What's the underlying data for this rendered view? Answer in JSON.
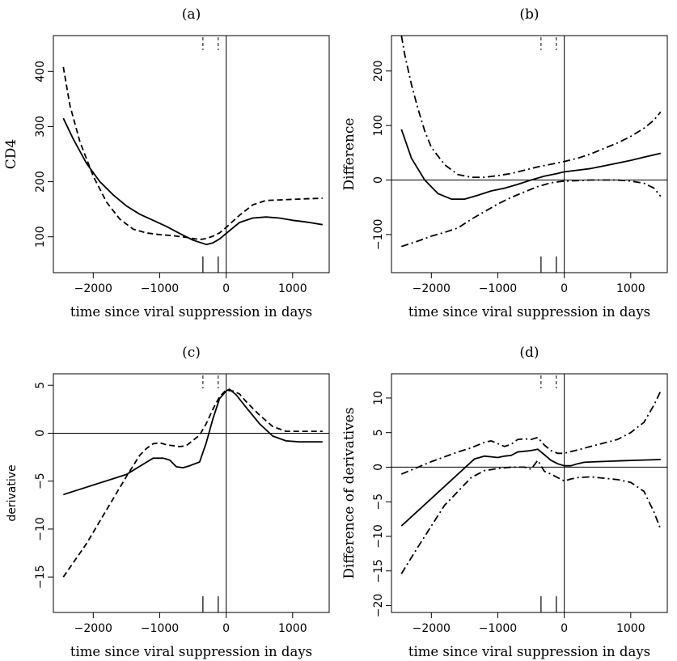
{
  "chart_data": [
    {
      "type": "line",
      "title": "(a)",
      "xlabel": "time since viral suppression in days",
      "ylabel": "CD4",
      "xlim": [
        -2600,
        1550
      ],
      "ylim": [
        35,
        465
      ],
      "xticks": [
        -2000,
        -1000,
        0,
        1000
      ],
      "yticks": [
        100,
        200,
        300,
        400
      ],
      "ytick_labels": [
        "100",
        "200",
        "300",
        "400"
      ],
      "hlines": [],
      "vlines": [
        0
      ],
      "top_rug": [
        -350,
        -120
      ],
      "bottom_rug": [
        -350,
        -120
      ],
      "series": [
        {
          "style": "solid",
          "x": [
            -2450,
            -2300,
            -2100,
            -1900,
            -1700,
            -1500,
            -1300,
            -1100,
            -900,
            -700,
            -500,
            -300,
            -200,
            -100,
            0,
            200,
            400,
            600,
            800,
            1000,
            1200,
            1450
          ],
          "y": [
            315,
            277,
            233,
            200,
            176,
            156,
            141,
            130,
            119,
            106,
            94,
            86,
            89,
            96,
            106,
            126,
            134,
            136,
            134,
            130,
            127,
            122
          ]
        },
        {
          "style": "dashed",
          "x": [
            -2450,
            -2350,
            -2200,
            -2000,
            -1800,
            -1600,
            -1400,
            -1200,
            -1000,
            -800,
            -600,
            -400,
            -300,
            -200,
            -100,
            0,
            200,
            400,
            600,
            800,
            1000,
            1200,
            1450
          ],
          "y": [
            408,
            338,
            272,
            210,
            163,
            132,
            114,
            107,
            104,
            102,
            99,
            95,
            97,
            101,
            107,
            117,
            139,
            158,
            166,
            167,
            168,
            169,
            170
          ]
        }
      ]
    },
    {
      "type": "line",
      "title": "(b)",
      "xlabel": "time since viral suppression in days",
      "ylabel": "Difference",
      "xlim": [
        -2600,
        1550
      ],
      "ylim": [
        -170,
        265
      ],
      "xticks": [
        -2000,
        -1000,
        0,
        1000
      ],
      "yticks": [
        -100,
        0,
        100,
        200
      ],
      "ytick_labels": [
        "−100",
        "0",
        "100",
        "200"
      ],
      "hlines": [
        0
      ],
      "vlines": [
        0
      ],
      "top_rug": [
        -350,
        -120
      ],
      "bottom_rug": [
        -350,
        -120
      ],
      "series": [
        {
          "style": "solid",
          "x": [
            -2450,
            -2300,
            -2100,
            -1900,
            -1700,
            -1500,
            -1300,
            -1100,
            -900,
            -700,
            -500,
            -300,
            -100,
            0,
            200,
            400,
            600,
            800,
            1000,
            1200,
            1450
          ],
          "y": [
            93,
            40,
            0,
            -25,
            -35,
            -35,
            -28,
            -20,
            -15,
            -8,
            0,
            7,
            12,
            15,
            18,
            21,
            26,
            31,
            36,
            42,
            49
          ]
        },
        {
          "style": "dashdot",
          "x": [
            -2450,
            -2400,
            -2300,
            -2200,
            -2100,
            -2000,
            -1800,
            -1600,
            -1400,
            -1200,
            -1000,
            -800,
            -600,
            -400,
            -200,
            0,
            200,
            400,
            600,
            800,
            1000,
            1200,
            1350,
            1450
          ],
          "y": [
            265,
            230,
            175,
            130,
            90,
            60,
            28,
            10,
            5,
            5,
            8,
            12,
            18,
            24,
            29,
            34,
            40,
            48,
            58,
            68,
            80,
            95,
            110,
            125
          ]
        },
        {
          "style": "dashdot",
          "x": [
            -2450,
            -2200,
            -2000,
            -1800,
            -1600,
            -1400,
            -1200,
            -1000,
            -800,
            -600,
            -400,
            -200,
            0,
            200,
            400,
            600,
            800,
            1000,
            1200,
            1350,
            1450
          ],
          "y": [
            -122,
            -112,
            -103,
            -96,
            -88,
            -72,
            -58,
            -44,
            -32,
            -22,
            -12,
            -5,
            -2,
            -1,
            0,
            0,
            0,
            -2,
            -6,
            -15,
            -30
          ]
        }
      ]
    },
    {
      "type": "line",
      "title": "(c)",
      "xlabel": "time since viral suppression in days",
      "ylabel": "derivative",
      "xlim": [
        -2600,
        1550
      ],
      "ylim": [
        -18.7,
        6.2
      ],
      "xticks": [
        -2000,
        -1000,
        0,
        1000
      ],
      "yticks": [
        -15,
        -10,
        -5,
        0,
        5
      ],
      "ytick_labels": [
        "−15",
        "−10",
        "−5",
        "0",
        "5"
      ],
      "hlines": [
        0
      ],
      "vlines": [
        0
      ],
      "top_rug": [
        -350,
        -120
      ],
      "bottom_rug": [
        -350,
        -120
      ],
      "series": [
        {
          "style": "solid",
          "x": [
            -2450,
            -1500,
            -1100,
            -950,
            -850,
            -750,
            -650,
            -550,
            -400,
            -300,
            -200,
            -100,
            0,
            50,
            150,
            300,
            500,
            700,
            900,
            1100,
            1450
          ],
          "y": [
            -6.4,
            -4.3,
            -2.6,
            -2.6,
            -2.8,
            -3.5,
            -3.6,
            -3.4,
            -3.0,
            -1.0,
            1.5,
            3.6,
            4.4,
            4.6,
            4.0,
            2.7,
            1.0,
            -0.3,
            -0.8,
            -0.9,
            -0.9
          ]
        },
        {
          "style": "dashed",
          "x": [
            -2450,
            -2100,
            -1800,
            -1500,
            -1300,
            -1200,
            -1100,
            -1000,
            -900,
            -800,
            -700,
            -600,
            -400,
            -300,
            -200,
            -100,
            0,
            100,
            200,
            300,
            500,
            700,
            900,
            1100,
            1450
          ],
          "y": [
            -15.0,
            -11.5,
            -8.0,
            -4.5,
            -2.3,
            -1.6,
            -1.1,
            -1.0,
            -1.2,
            -1.3,
            -1.4,
            -1.3,
            -0.2,
            1.0,
            2.5,
            3.8,
            4.5,
            4.4,
            4.1,
            3.3,
            1.9,
            0.7,
            0.2,
            0.2,
            0.2
          ]
        }
      ]
    },
    {
      "type": "line",
      "title": "(d)",
      "xlabel": "time since viral suppression in days",
      "ylabel": "Difference of derivatives",
      "xlim": [
        -2600,
        1550
      ],
      "ylim": [
        -21,
        13.5
      ],
      "xticks": [
        -2000,
        -1000,
        0,
        1000
      ],
      "yticks": [
        -20,
        -15,
        -10,
        -5,
        0,
        5,
        10
      ],
      "ytick_labels": [
        "−20",
        "−15",
        "−10",
        "−5",
        "0",
        "5",
        "10"
      ],
      "hlines": [
        0
      ],
      "vlines": [
        0
      ],
      "top_rug": [
        -350,
        -120
      ],
      "bottom_rug": [
        -350,
        -120
      ],
      "series": [
        {
          "style": "solid",
          "x": [
            -2450,
            -1350,
            -1200,
            -1100,
            -1000,
            -900,
            -800,
            -700,
            -600,
            -500,
            -400,
            -300,
            -200,
            -100,
            0,
            100,
            200,
            300,
            500,
            800,
            1100,
            1450
          ],
          "y": [
            -8.5,
            1.2,
            1.6,
            1.5,
            1.4,
            1.6,
            1.7,
            2.2,
            2.3,
            2.4,
            2.6,
            1.8,
            1.0,
            0.5,
            0.2,
            0.2,
            0.5,
            0.7,
            0.8,
            0.9,
            1.0,
            1.1
          ]
        },
        {
          "style": "dashdot",
          "x": [
            -2450,
            -2200,
            -2000,
            -1800,
            -1600,
            -1400,
            -1200,
            -1100,
            -1000,
            -900,
            -800,
            -700,
            -600,
            -500,
            -400,
            -300,
            -200,
            -100,
            0,
            200,
            400,
            600,
            800,
            1000,
            1200,
            1350,
            1450
          ],
          "y": [
            -1.0,
            0.0,
            0.8,
            1.5,
            2.2,
            2.8,
            3.6,
            3.8,
            3.4,
            3.0,
            3.3,
            4.0,
            4.1,
            4.0,
            4.3,
            3.2,
            2.4,
            2.0,
            2.0,
            2.5,
            3.0,
            3.5,
            4.0,
            5.0,
            6.5,
            9.0,
            11.0
          ]
        },
        {
          "style": "dashdot",
          "x": [
            -2450,
            -2200,
            -2000,
            -1800,
            -1600,
            -1400,
            -1200,
            -1000,
            -800,
            -600,
            -500,
            -400,
            -300,
            -200,
            -100,
            0,
            100,
            200,
            400,
            600,
            800,
            1000,
            1200,
            1350,
            1450
          ],
          "y": [
            -15.4,
            -11.5,
            -8.5,
            -5.5,
            -3.5,
            -1.5,
            -0.5,
            -0.2,
            0.0,
            0.0,
            -0.3,
            1.0,
            -0.6,
            -1.0,
            -1.5,
            -2.0,
            -1.7,
            -1.5,
            -1.4,
            -1.6,
            -1.8,
            -2.2,
            -3.5,
            -6.5,
            -9.0
          ]
        }
      ]
    }
  ]
}
